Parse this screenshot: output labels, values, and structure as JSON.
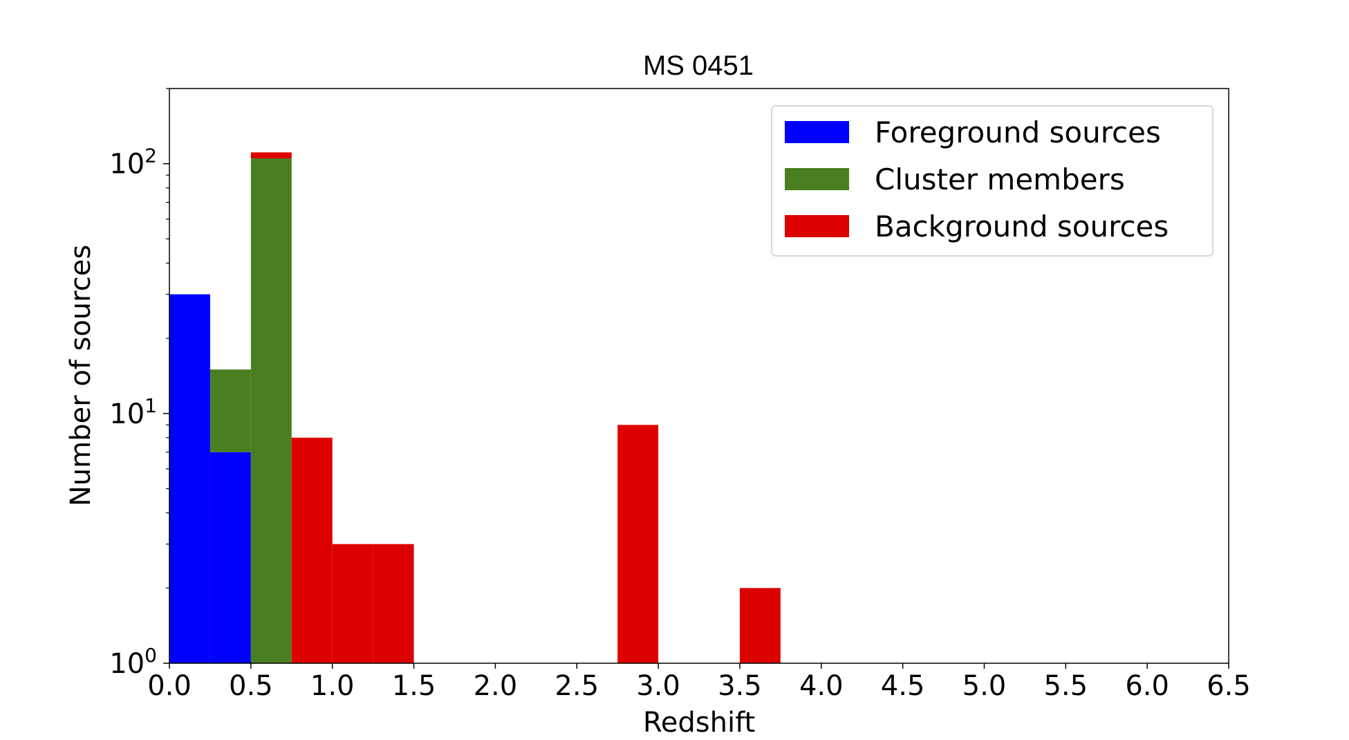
{
  "chart_data": {
    "type": "bar",
    "title": "MS 0451",
    "xlabel": "Redshift",
    "ylabel": "Number of sources",
    "yscale": "log",
    "xlim": [
      0.0,
      6.5
    ],
    "ylim": [
      1,
      200
    ],
    "bin_width": 0.25,
    "stacked": true,
    "x_ticks": [
      "0.0",
      "0.5",
      "1.0",
      "1.5",
      "2.0",
      "2.5",
      "3.0",
      "3.5",
      "4.0",
      "4.5",
      "5.0",
      "5.5",
      "6.0",
      "6.5"
    ],
    "y_ticks": [
      {
        "value": 1,
        "base": "10",
        "exp": "0"
      },
      {
        "value": 10,
        "base": "10",
        "exp": "1"
      },
      {
        "value": 100,
        "base": "10",
        "exp": "2"
      }
    ],
    "legend_position": "upper-right",
    "grid": false,
    "series": [
      {
        "name": "Foreground sources",
        "color": "#0000ff",
        "bins": [
          {
            "x0": 0.0,
            "x1": 0.25,
            "count": 30
          },
          {
            "x0": 0.25,
            "x1": 0.5,
            "count": 7
          }
        ]
      },
      {
        "name": "Cluster members",
        "color": "#4a7f21",
        "bins": [
          {
            "x0": 0.25,
            "x1": 0.5,
            "count": 8
          },
          {
            "x0": 0.5,
            "x1": 0.75,
            "count": 105
          }
        ]
      },
      {
        "name": "Background sources",
        "color": "#dd0000",
        "bins": [
          {
            "x0": 0.5,
            "x1": 0.75,
            "count": 6
          },
          {
            "x0": 0.75,
            "x1": 1.0,
            "count": 8
          },
          {
            "x0": 1.0,
            "x1": 1.25,
            "count": 3
          },
          {
            "x0": 1.25,
            "x1": 1.5,
            "count": 3
          },
          {
            "x0": 2.75,
            "x1": 3.0,
            "count": 9
          },
          {
            "x0": 3.5,
            "x1": 3.75,
            "count": 2
          }
        ]
      }
    ]
  }
}
